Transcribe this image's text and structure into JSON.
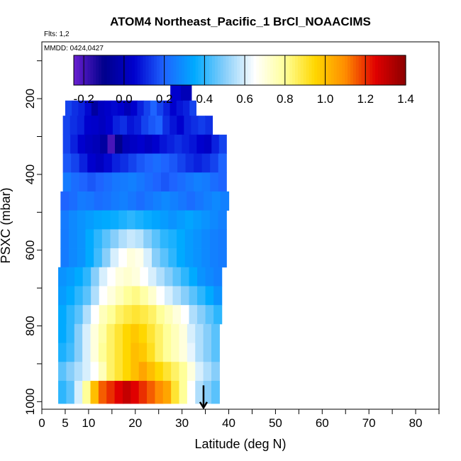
{
  "chart_data": {
    "type": "heatmap",
    "title": "ATOM4 Northeast_Pacific_1 BrCl_NOAACIMS",
    "flights_text": "Flts: 1,2",
    "dates_text": "MMDD: 0424,0427",
    "xlabel": "Latitude (deg N)",
    "ylabel": "PSXC (mbar)",
    "xlim": [
      0,
      85
    ],
    "ylim": [
      1020,
      50
    ],
    "x_ticks": [
      0,
      5,
      10,
      20,
      30,
      40,
      50,
      60,
      70,
      80
    ],
    "y_ticks": [
      200,
      400,
      600,
      800,
      1000
    ],
    "colorbar": {
      "ticks": [
        "-0.2",
        "0.0",
        "0.2",
        "0.4",
        "0.6",
        "0.8",
        "1.0",
        "1.2",
        "1.4"
      ],
      "range": [
        -0.25,
        1.4
      ],
      "colors": [
        "#6a1fd0",
        "#00008b",
        "#0000cd",
        "#1e64ff",
        "#00aaff",
        "#87cefa",
        "#ffffff",
        "#ffff99",
        "#ffd700",
        "#ff8c00",
        "#e00000",
        "#8b0000"
      ]
    },
    "arrow_latitude": 34.6,
    "rows": [
      {
        "p": 190,
        "x0": 27.5,
        "x1": 32.0,
        "v": [
          0.05,
          0.0
        ]
      },
      {
        "p": 220,
        "x0": 5.0,
        "x1": 33.0,
        "v": [
          0.15,
          0.12,
          0.1,
          0.06,
          -0.05,
          0.02,
          0.04,
          0.06,
          0.05,
          0.0,
          0.05,
          0.1,
          0.15,
          0.2,
          0.15,
          0.1,
          0.05,
          0.08,
          0.1,
          0.15
        ]
      },
      {
        "p": 270,
        "x0": 4.5,
        "x1": 36.5,
        "v": [
          0.15,
          0.12,
          0.1,
          0.05,
          0.04,
          0.02,
          0.05,
          0.1,
          0.12,
          0.08,
          0.1,
          0.15,
          0.18,
          0.2,
          0.12,
          0.08,
          0.05,
          0.1,
          0.12,
          0.14,
          0.12
        ]
      },
      {
        "p": 320,
        "x0": 4.5,
        "x1": 39.5,
        "v": [
          0.15,
          0.1,
          0.05,
          0.02,
          0.0,
          -0.05,
          -0.2,
          -0.1,
          0.0,
          0.03,
          0.05,
          0.02,
          0.05,
          0.08,
          0.1,
          0.12,
          0.1,
          0.08,
          0.05,
          0.03,
          0.1,
          0.15
        ]
      },
      {
        "p": 370,
        "x0": 4.5,
        "x1": 39.5,
        "v": [
          0.18,
          0.15,
          0.1,
          0.05,
          0.02,
          0.06,
          0.1,
          0.12,
          0.15,
          0.18,
          0.2,
          0.22,
          0.2,
          0.18,
          0.15,
          0.12,
          0.1,
          0.12,
          0.15,
          0.2
        ]
      },
      {
        "p": 420,
        "x0": 4.5,
        "x1": 39.5,
        "v": [
          0.25,
          0.22,
          0.2,
          0.18,
          0.2,
          0.22,
          0.24,
          0.25,
          0.26,
          0.24,
          0.22,
          0.2,
          0.18,
          0.2,
          0.22,
          0.24,
          0.26,
          0.25,
          0.22,
          0.2
        ]
      },
      {
        "p": 470,
        "x0": 4.0,
        "x1": 40.0,
        "v": [
          0.2,
          0.22,
          0.25,
          0.24,
          0.22,
          0.23,
          0.25,
          0.26,
          0.24,
          0.22,
          0.24,
          0.26,
          0.28,
          0.26,
          0.24,
          0.22,
          0.24,
          0.26,
          0.28,
          0.26
        ]
      },
      {
        "p": 520,
        "x0": 4.0,
        "x1": 39.5,
        "v": [
          0.25,
          0.28,
          0.3,
          0.32,
          0.34,
          0.35,
          0.36,
          0.38,
          0.4,
          0.38,
          0.36,
          0.34,
          0.32,
          0.3,
          0.32,
          0.34,
          0.32,
          0.3,
          0.28,
          0.26
        ]
      },
      {
        "p": 570,
        "x0": 4.0,
        "x1": 39.5,
        "v": [
          0.25,
          0.28,
          0.3,
          0.35,
          0.4,
          0.45,
          0.5,
          0.55,
          0.58,
          0.56,
          0.5,
          0.45,
          0.4,
          0.38,
          0.35,
          0.32,
          0.3,
          0.28,
          0.26,
          0.25
        ]
      },
      {
        "p": 620,
        "x0": 4.0,
        "x1": 39.5,
        "v": [
          0.25,
          0.28,
          0.3,
          0.35,
          0.42,
          0.5,
          0.6,
          0.65,
          0.7,
          0.68,
          0.6,
          0.5,
          0.45,
          0.4,
          0.35,
          0.32,
          0.3,
          0.28,
          0.26,
          0.25
        ]
      },
      {
        "p": 670,
        "x0": 3.5,
        "x1": 38.5,
        "v": [
          0.3,
          0.32,
          0.35,
          0.4,
          0.5,
          0.6,
          0.65,
          0.7,
          0.72,
          0.7,
          0.65,
          0.6,
          0.55,
          0.5,
          0.45,
          0.4,
          0.35,
          0.3,
          0.28,
          0.26
        ]
      },
      {
        "p": 720,
        "x0": 3.5,
        "x1": 38.5,
        "v": [
          0.32,
          0.35,
          0.4,
          0.45,
          0.55,
          0.65,
          0.7,
          0.75,
          0.8,
          0.82,
          0.78,
          0.72,
          0.65,
          0.6,
          0.55,
          0.5,
          0.45,
          0.4,
          0.35,
          0.3
        ]
      },
      {
        "p": 770,
        "x0": 3.5,
        "x1": 38.5,
        "v": [
          0.35,
          0.4,
          0.45,
          0.55,
          0.65,
          0.75,
          0.8,
          0.85,
          0.88,
          0.9,
          0.88,
          0.85,
          0.8,
          0.75,
          0.7,
          0.65,
          0.55,
          0.5,
          0.45,
          0.4
        ]
      },
      {
        "p": 820,
        "x0": 3.5,
        "x1": 38.0,
        "v": [
          0.35,
          0.4,
          0.5,
          0.6,
          0.7,
          0.78,
          0.85,
          0.9,
          0.95,
          0.98,
          0.95,
          0.9,
          0.85,
          0.8,
          0.75,
          0.7,
          0.6,
          0.55,
          0.5,
          0.45
        ]
      },
      {
        "p": 870,
        "x0": 3.5,
        "x1": 38.0,
        "v": [
          0.38,
          0.42,
          0.5,
          0.6,
          0.7,
          0.8,
          0.85,
          0.9,
          0.95,
          1.0,
          0.98,
          0.92,
          0.85,
          0.8,
          0.75,
          0.7,
          0.62,
          0.55,
          0.5,
          0.45
        ]
      },
      {
        "p": 920,
        "x0": 3.5,
        "x1": 38.0,
        "v": [
          0.45,
          0.5,
          0.55,
          0.6,
          0.65,
          0.75,
          0.85,
          0.9,
          0.95,
          1.0,
          1.05,
          1.0,
          0.95,
          0.9,
          0.85,
          0.8,
          0.7,
          0.6,
          0.55,
          0.5
        ]
      },
      {
        "p": 970,
        "x0": 3.5,
        "x1": 38.0,
        "v": [
          0.4,
          0.45,
          0.6,
          0.8,
          1.0,
          1.15,
          1.2,
          1.25,
          1.3,
          1.25,
          1.2,
          1.15,
          1.1,
          1.05,
          0.9,
          0.8,
          0.65,
          0.55,
          0.5,
          0.45
        ]
      }
    ]
  }
}
